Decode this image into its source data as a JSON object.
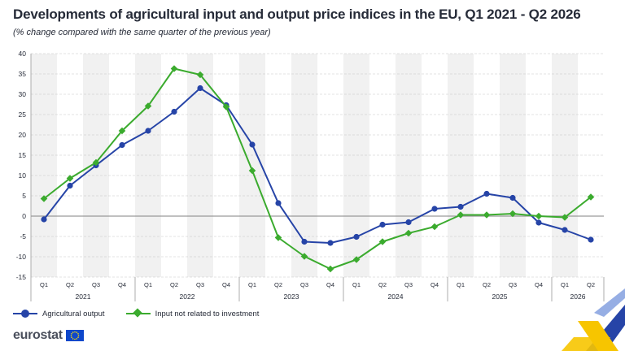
{
  "title": "Developments of agricultural input and output price indices in the EU, Q1 2021 - Q2 2026",
  "subtitle": "(% change compared with the same quarter of the previous year)",
  "logo": {
    "text": "eurostat"
  },
  "colors": {
    "agricultural_output": "#2644a7",
    "input_not_related": "#3bab2e",
    "band": "#f1f1f1",
    "grid": "#c8c8c8",
    "zero_line": "#9a9a9a"
  },
  "chart_data": {
    "type": "line",
    "title": "Developments of agricultural input and output price indices in the EU, Q1 2021 - Q2 2026",
    "subtitle": "(% change compared with the same quarter of the previous year)",
    "categories": [
      "Q1",
      "Q2",
      "Q3",
      "Q4",
      "Q1",
      "Q2",
      "Q3",
      "Q4",
      "Q1",
      "Q2",
      "Q3",
      "Q4",
      "Q1",
      "Q2",
      "Q3",
      "Q4",
      "Q1",
      "Q2",
      "Q3",
      "Q4",
      "Q1",
      "Q2"
    ],
    "years": [
      {
        "label": "2021",
        "start": 0,
        "count": 4
      },
      {
        "label": "2022",
        "start": 4,
        "count": 4
      },
      {
        "label": "2023",
        "start": 8,
        "count": 4
      },
      {
        "label": "2024",
        "start": 12,
        "count": 4
      },
      {
        "label": "2025",
        "start": 16,
        "count": 4
      },
      {
        "label": "2026",
        "start": 20,
        "count": 2
      }
    ],
    "ylim": [
      -15,
      40
    ],
    "yticks": [
      -15,
      -10,
      -5,
      0,
      5,
      10,
      15,
      20,
      25,
      30,
      35,
      40
    ],
    "grid": true,
    "legend_position": "bottom-left",
    "series": [
      {
        "name": "Agricultural output",
        "marker": "circle",
        "values": [
          -0.8,
          7.5,
          12.5,
          17.5,
          21.0,
          25.7,
          31.5,
          27.3,
          17.6,
          3.2,
          -6.3,
          -6.6,
          -5.1,
          -2.1,
          -1.5,
          1.8,
          2.3,
          5.5,
          4.5,
          -1.6,
          -3.4,
          -5.8
        ]
      },
      {
        "name": "Input not related to investment",
        "marker": "diamond",
        "values": [
          4.3,
          9.3,
          13.2,
          21.0,
          27.1,
          36.3,
          34.8,
          26.9,
          11.2,
          -5.3,
          -9.9,
          -13.0,
          -10.7,
          -6.3,
          -4.2,
          -2.6,
          0.3,
          0.3,
          0.6,
          0.0,
          -0.3,
          4.7
        ]
      }
    ]
  }
}
